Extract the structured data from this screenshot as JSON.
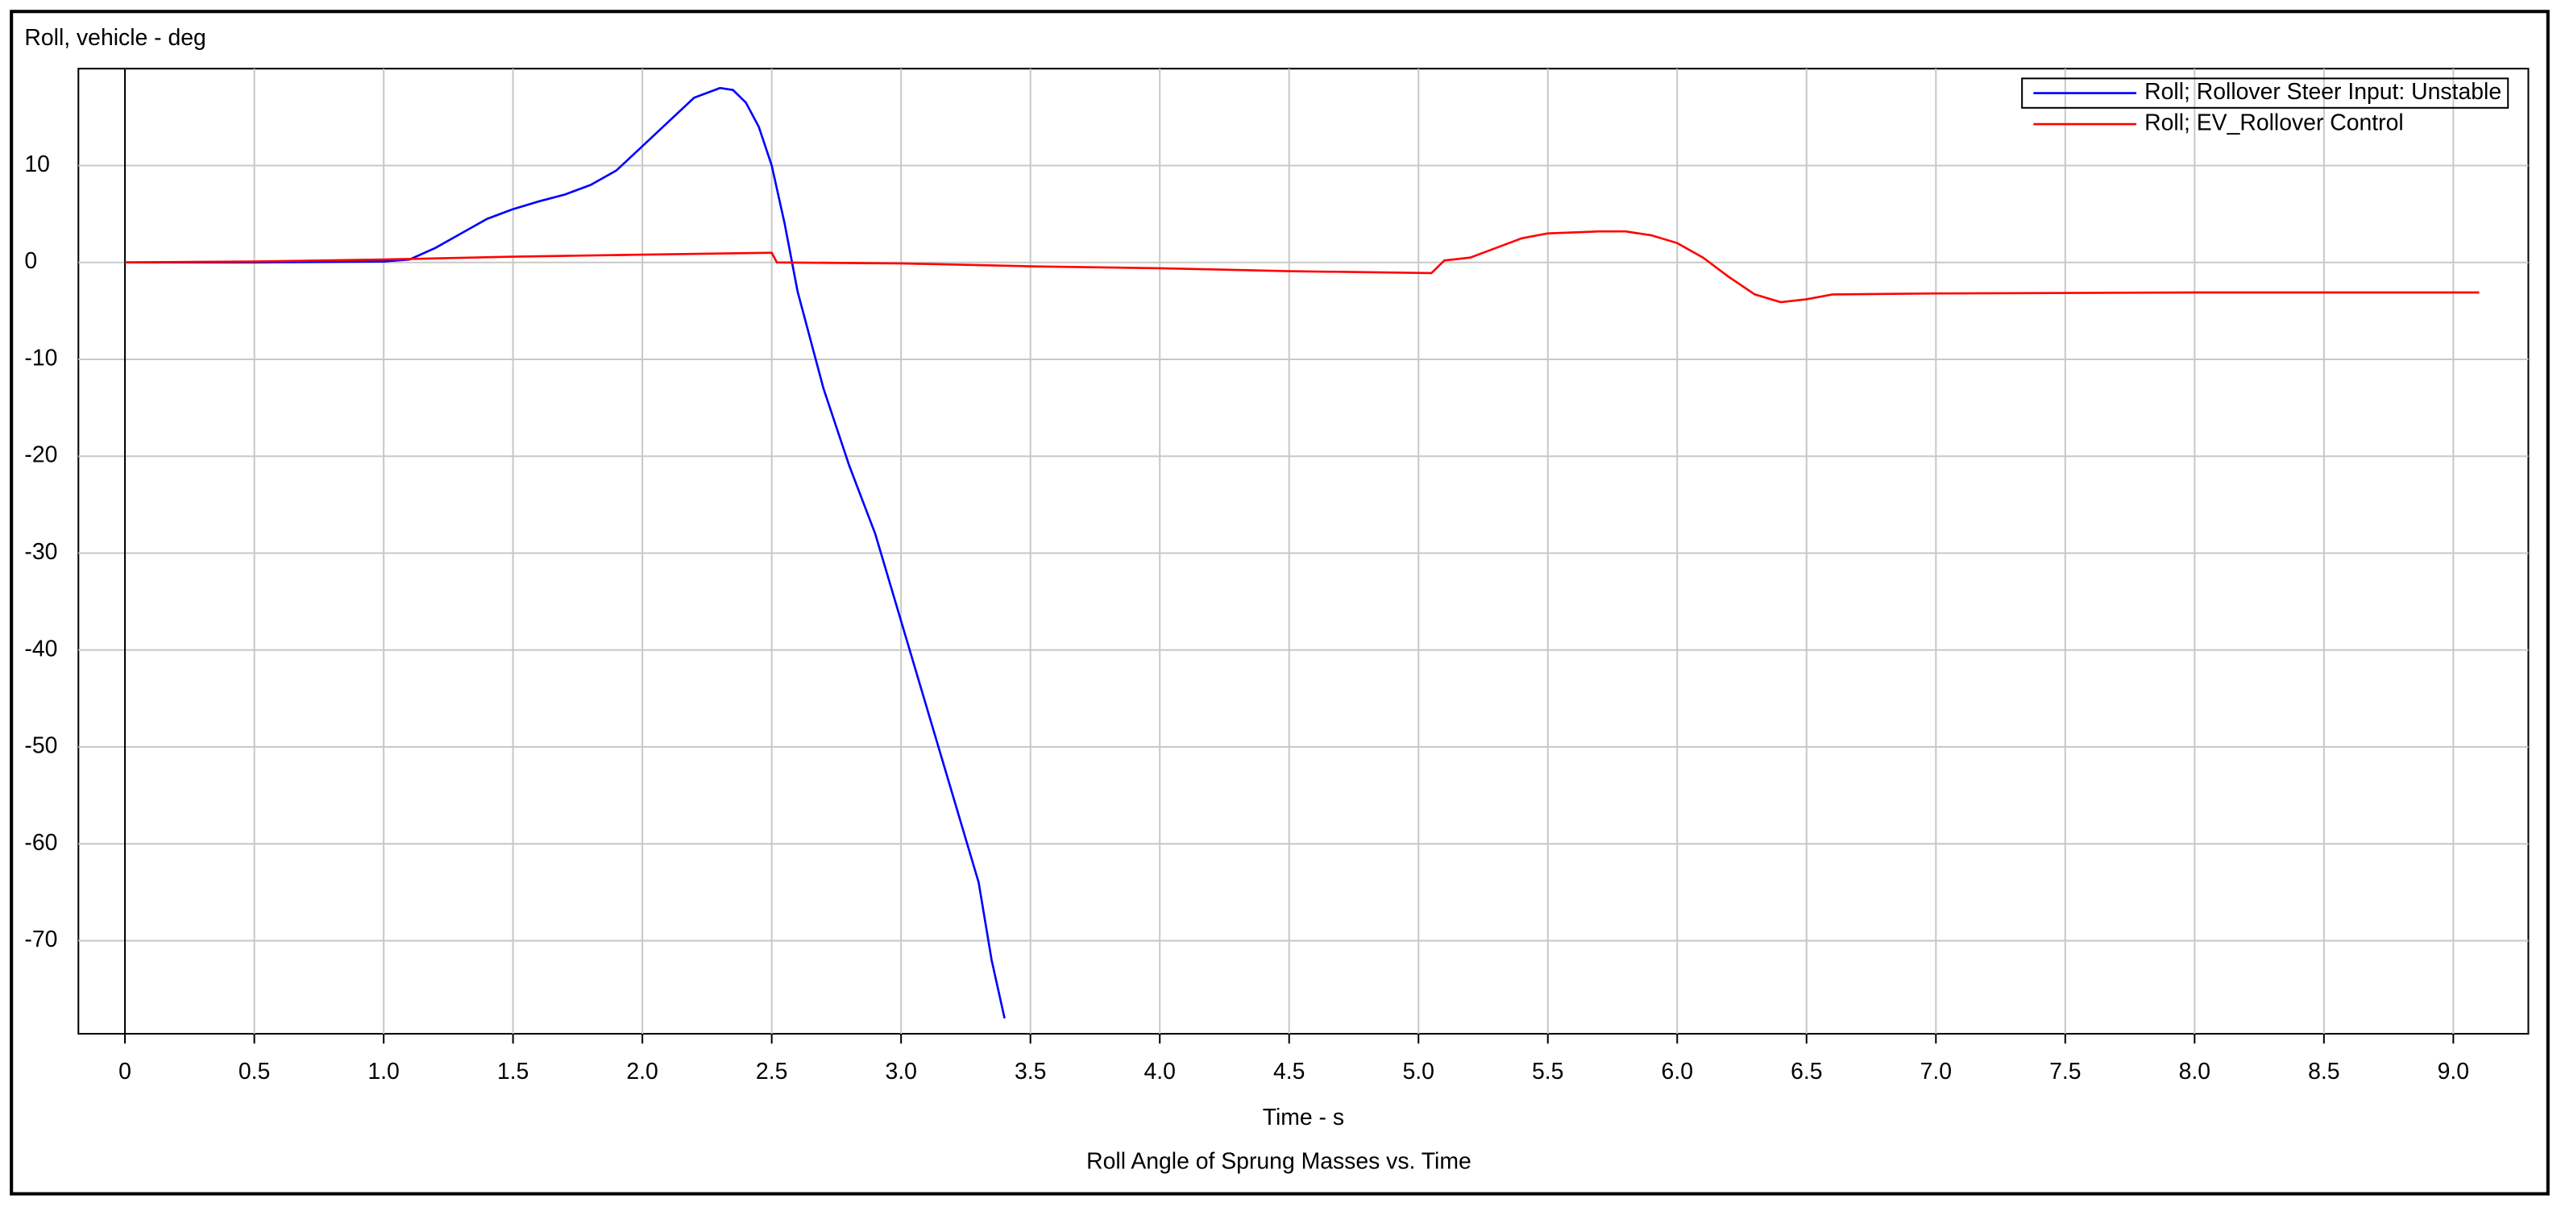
{
  "chart_data": {
    "type": "line",
    "title": "Roll, vehicle - deg",
    "x_label": "Time - s",
    "caption": "Roll Angle of Sprung Masses vs. Time",
    "xlim": [
      -0.18,
      9.29
    ],
    "ylim": [
      -79.6,
      20
    ],
    "xticks": [
      0,
      0.5,
      {
        "value": 1,
        "label": "1.0"
      },
      1.5,
      {
        "value": 2,
        "label": "2.0"
      },
      2.5,
      {
        "value": 3,
        "label": "3.0"
      },
      3.5,
      {
        "value": 4,
        "label": "4.0"
      },
      4.5,
      {
        "value": 5,
        "label": "5.0"
      },
      5.5,
      {
        "value": 6,
        "label": "6.0"
      },
      6.5,
      {
        "value": 7,
        "label": "7.0"
      },
      7.5,
      {
        "value": 8,
        "label": "8.0"
      },
      8.5,
      {
        "value": 9,
        "label": "9.0"
      }
    ],
    "yticks": [
      10,
      0,
      -10,
      -20,
      -30,
      -40,
      -50,
      -60,
      -70
    ],
    "grid": true,
    "legend": "top-right",
    "series": [
      {
        "name": "Roll; Rollover Steer Input: Unstable",
        "color": "#0000ff",
        "x": [
          0,
          0.5,
          1.0,
          1.1,
          1.2,
          1.3,
          1.4,
          1.5,
          1.6,
          1.7,
          1.8,
          1.9,
          2.0,
          2.1,
          2.2,
          2.3,
          2.35,
          2.4,
          2.45,
          2.5,
          2.55,
          2.6,
          2.7,
          2.8,
          2.9,
          3.0,
          3.1,
          3.2,
          3.3,
          3.35,
          3.4
        ],
        "values": [
          0,
          0,
          0.1,
          0.3,
          1.5,
          3,
          4.5,
          5.5,
          6.3,
          7,
          8,
          9.5,
          12,
          14.5,
          17,
          18,
          17.8,
          16.5,
          14,
          10,
          4,
          -3,
          -13,
          -21,
          -28,
          -37,
          -46,
          -55,
          -64,
          -72,
          -78
        ]
      },
      {
        "name": "Roll; EV_Rollover Control",
        "color": "#ff0000",
        "x": [
          0,
          0.5,
          1.0,
          1.5,
          2.0,
          2.5,
          2.52,
          3.0,
          3.5,
          4.0,
          4.5,
          5.05,
          5.1,
          5.2,
          5.3,
          5.4,
          5.5,
          5.7,
          5.8,
          5.9,
          6.0,
          6.1,
          6.2,
          6.3,
          6.4,
          6.5,
          6.6,
          7.0,
          8.0,
          9.1
        ],
        "values": [
          0,
          0.1,
          0.3,
          0.6,
          0.8,
          1.0,
          0,
          -0.1,
          -0.4,
          -0.6,
          -0.9,
          -1.1,
          0.2,
          0.5,
          1.5,
          2.5,
          3,
          3.2,
          3.2,
          2.8,
          2,
          0.5,
          -1.5,
          -3.3,
          -4.1,
          -3.8,
          -3.3,
          -3.2,
          -3.1,
          -3.1
        ]
      }
    ]
  }
}
